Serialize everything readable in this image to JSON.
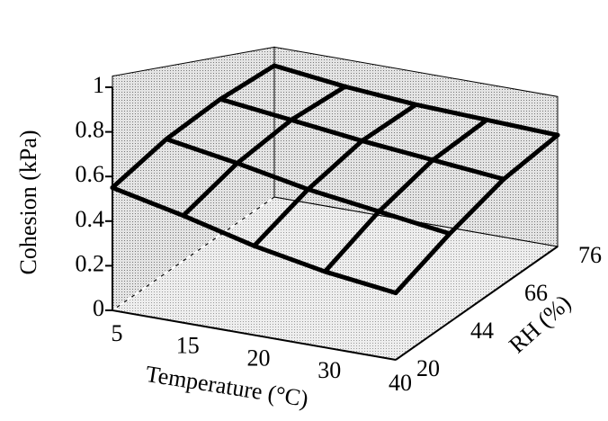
{
  "chart_data": {
    "type": "surface",
    "x_label": "Temperature (°C)",
    "y_label": "RH (%)",
    "z_label": "Cohesion (kPa)",
    "x_categories": [
      5,
      15,
      20,
      30,
      40
    ],
    "y_categories": [
      20,
      44,
      66,
      76
    ],
    "values": [
      [
        0.55,
        0.48,
        0.4,
        0.34,
        0.3
      ],
      [
        0.68,
        0.62,
        0.55,
        0.5,
        0.45
      ],
      [
        0.8,
        0.75,
        0.7,
        0.66,
        0.62
      ],
      [
        0.92,
        0.86,
        0.82,
        0.8,
        0.78
      ]
    ],
    "zlim": [
      0,
      1
    ],
    "zticks": [
      0,
      0.2,
      0.4,
      0.6,
      0.8,
      1
    ]
  }
}
